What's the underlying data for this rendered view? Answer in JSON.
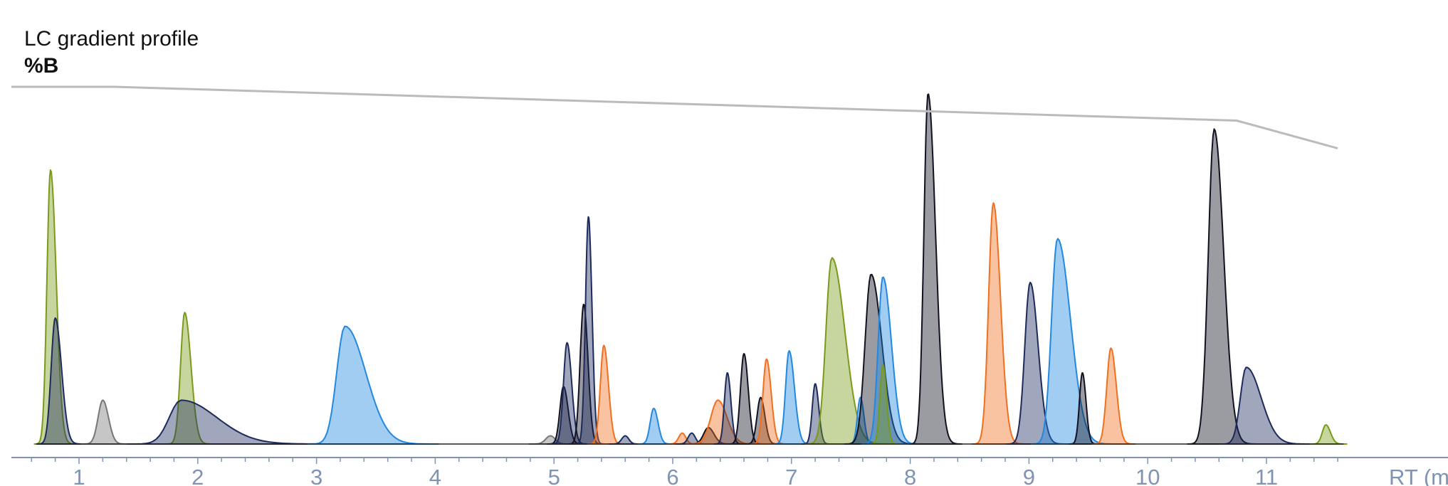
{
  "chart_data": {
    "type": "line",
    "title": "LC gradient profile",
    "ylabel": "%B",
    "xlabel": "RT (min)",
    "xlim": [
      0.4,
      11.6
    ],
    "x_ticks": [
      "1",
      "2",
      "3",
      "4",
      "5",
      "6",
      "7",
      "8",
      "9",
      "10",
      "11"
    ],
    "y_scale": "relative intensity (no printed axis)",
    "grid": false,
    "legend": "none",
    "colors": {
      "gradient": "#bbbbbb",
      "axis": "#8094b2",
      "green": "#7a9a1a",
      "navy": "#1c2a5c",
      "gray": "#777777",
      "blue": "#2288e0",
      "orange": "#f07020",
      "dark": "#111122"
    },
    "gradient_profile": [
      {
        "x": 0.4,
        "y": 100
      },
      {
        "x": 1.3,
        "y": 100
      },
      {
        "x": 10.75,
        "y": 67
      },
      {
        "x": 11.6,
        "y": 40
      }
    ],
    "peaks": [
      {
        "rt": 0.76,
        "height": 100,
        "width": 0.03,
        "tail": 1.6,
        "color": "green"
      },
      {
        "rt": 0.8,
        "height": 46,
        "width": 0.035,
        "tail": 1.5,
        "color": "navy"
      },
      {
        "rt": 1.2,
        "height": 16,
        "width": 0.04,
        "tail": 1.2,
        "color": "gray"
      },
      {
        "rt": 1.89,
        "height": 48,
        "width": 0.035,
        "tail": 1.5,
        "color": "green"
      },
      {
        "rt": 1.86,
        "height": 16,
        "width": 0.1,
        "tail": 3.0,
        "color": "navy"
      },
      {
        "rt": 3.24,
        "height": 43,
        "width": 0.07,
        "tail": 2.5,
        "color": "blue"
      },
      {
        "rt": 4.97,
        "height": 3,
        "width": 0.04,
        "tail": 1.0,
        "color": "gray"
      },
      {
        "rt": 5.08,
        "height": 21,
        "width": 0.03,
        "tail": 1.3,
        "color": "dark"
      },
      {
        "rt": 5.11,
        "height": 37,
        "width": 0.03,
        "tail": 1.3,
        "color": "navy"
      },
      {
        "rt": 5.25,
        "height": 51,
        "width": 0.03,
        "tail": 1.2,
        "color": "dark"
      },
      {
        "rt": 5.29,
        "height": 83,
        "width": 0.025,
        "tail": 1.2,
        "color": "navy"
      },
      {
        "rt": 5.42,
        "height": 36,
        "width": 0.03,
        "tail": 1.3,
        "color": "orange"
      },
      {
        "rt": 5.6,
        "height": 3,
        "width": 0.03,
        "tail": 1.0,
        "color": "navy"
      },
      {
        "rt": 5.84,
        "height": 13,
        "width": 0.03,
        "tail": 1.2,
        "color": "blue"
      },
      {
        "rt": 6.08,
        "height": 4,
        "width": 0.03,
        "tail": 1.0,
        "color": "orange"
      },
      {
        "rt": 6.16,
        "height": 4,
        "width": 0.03,
        "tail": 1.0,
        "color": "navy"
      },
      {
        "rt": 6.3,
        "height": 6,
        "width": 0.04,
        "tail": 1.2,
        "color": "dark"
      },
      {
        "rt": 6.38,
        "height": 16,
        "width": 0.06,
        "tail": 1.3,
        "color": "orange"
      },
      {
        "rt": 6.46,
        "height": 26,
        "width": 0.025,
        "tail": 1.2,
        "color": "navy"
      },
      {
        "rt": 6.6,
        "height": 33,
        "width": 0.03,
        "tail": 1.2,
        "color": "dark"
      },
      {
        "rt": 6.74,
        "height": 17,
        "width": 0.03,
        "tail": 1.2,
        "color": "dark"
      },
      {
        "rt": 6.79,
        "height": 31,
        "width": 0.03,
        "tail": 1.3,
        "color": "orange"
      },
      {
        "rt": 6.98,
        "height": 34,
        "width": 0.03,
        "tail": 1.5,
        "color": "blue"
      },
      {
        "rt": 7.2,
        "height": 22,
        "width": 0.025,
        "tail": 1.2,
        "color": "navy"
      },
      {
        "rt": 7.34,
        "height": 68,
        "width": 0.05,
        "tail": 2.2,
        "color": "green"
      },
      {
        "rt": 7.58,
        "height": 17,
        "width": 0.025,
        "tail": 1.2,
        "color": "blue"
      },
      {
        "rt": 7.67,
        "height": 62,
        "width": 0.05,
        "tail": 1.8,
        "color": "dark"
      },
      {
        "rt": 7.77,
        "height": 61,
        "width": 0.04,
        "tail": 1.8,
        "color": "blue"
      },
      {
        "rt": 7.77,
        "height": 29,
        "width": 0.025,
        "tail": 1.2,
        "color": "green"
      },
      {
        "rt": 8.15,
        "height": 128,
        "width": 0.035,
        "tail": 1.8,
        "color": "dark"
      },
      {
        "rt": 8.7,
        "height": 88,
        "width": 0.04,
        "tail": 1.5,
        "color": "orange"
      },
      {
        "rt": 9.01,
        "height": 59,
        "width": 0.045,
        "tail": 1.5,
        "color": "navy"
      },
      {
        "rt": 9.24,
        "height": 75,
        "width": 0.05,
        "tail": 2.2,
        "color": "blue"
      },
      {
        "rt": 9.45,
        "height": 26,
        "width": 0.025,
        "tail": 1.2,
        "color": "dark"
      },
      {
        "rt": 9.69,
        "height": 35,
        "width": 0.035,
        "tail": 1.3,
        "color": "orange"
      },
      {
        "rt": 10.56,
        "height": 115,
        "width": 0.05,
        "tail": 1.6,
        "color": "dark"
      },
      {
        "rt": 10.83,
        "height": 28,
        "width": 0.05,
        "tail": 2.5,
        "color": "navy"
      },
      {
        "rt": 11.5,
        "height": 7,
        "width": 0.03,
        "tail": 1.3,
        "color": "green"
      }
    ]
  }
}
